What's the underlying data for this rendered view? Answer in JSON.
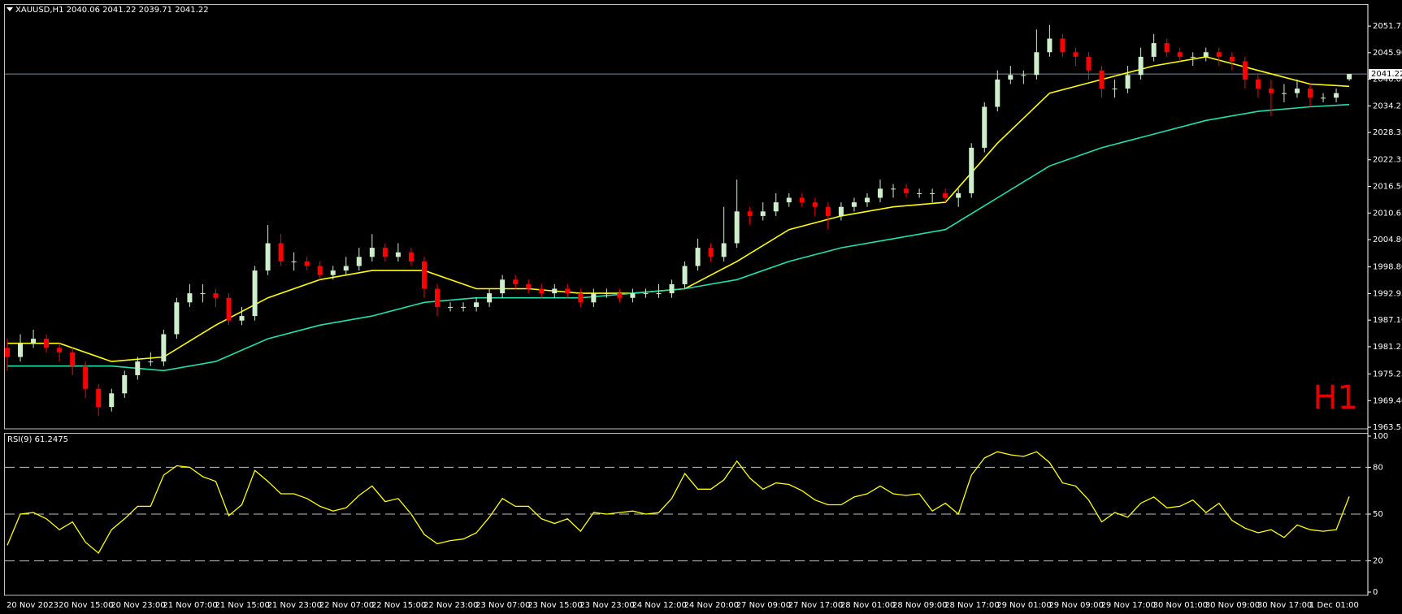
{
  "chart_data": [
    {
      "type": "candlestick",
      "title": "XAUUSD,H1  2040.06 2041.22 2039.71 2041.22",
      "watermark": "H1",
      "watermark_color": "#e00000",
      "up_color": "#cfeecb",
      "down_color": "#ff0000",
      "categories": [
        "20 Nov 2023",
        null,
        null,
        null,
        "20 Nov 15:00",
        null,
        null,
        null,
        "20 Nov 23:00",
        null,
        null,
        null,
        "21 Nov 07:00",
        null,
        null,
        null,
        "21 Nov 15:00",
        null,
        null,
        null,
        "21 Nov 23:00",
        null,
        null,
        null,
        "22 Nov 07:00",
        null,
        null,
        null,
        "22 Nov 15:00",
        null,
        null,
        null,
        "22 Nov 23:00",
        null,
        null,
        null,
        "23 Nov 07:00",
        null,
        null,
        null,
        "23 Nov 15:00",
        null,
        null,
        null,
        "23 Nov 23:00",
        null,
        null,
        null,
        "24 Nov 12:00",
        null,
        null,
        null,
        "24 Nov 20:00",
        null,
        null,
        null,
        "27 Nov 09:00",
        null,
        null,
        null,
        "27 Nov 17:00",
        null,
        null,
        null,
        "28 Nov 01:00",
        null,
        null,
        null,
        "28 Nov 09:00",
        null,
        null,
        null,
        "28 Nov 17:00",
        null,
        null,
        null,
        "29 Nov 01:00",
        null,
        null,
        null,
        "29 Nov 09:00",
        null,
        null,
        null,
        "29 Nov 17:00",
        null,
        null,
        null,
        "30 Nov 01:00",
        null,
        null,
        null,
        "30 Nov 09:00",
        null,
        null,
        null,
        "30 Nov 17:00",
        null,
        null,
        null,
        "1 Dec 01:00",
        null,
        null,
        null
      ],
      "open": [
        1981,
        1979,
        1982,
        1983,
        1981,
        1980,
        1977,
        1972,
        1968,
        1971,
        1975,
        1978,
        1978,
        1984,
        1991,
        1993,
        1993,
        1992,
        1987,
        1988,
        1998,
        2004,
        2000,
        2000,
        1999,
        1997,
        1998,
        1999,
        2001,
        2003,
        2001,
        2002,
        2000,
        1994,
        1990,
        1990,
        1990,
        1991,
        1993,
        1996,
        1995,
        1994,
        1993,
        1994,
        1993,
        1991,
        1993,
        1993,
        1992,
        1993,
        1993,
        1993,
        1995,
        1999,
        2003,
        2001,
        2004,
        2011,
        2010,
        2011,
        2013,
        2014,
        2013,
        2012,
        2010,
        2012,
        2013,
        2014,
        2016,
        2016,
        2015,
        2015,
        2015,
        2014,
        2015,
        2025,
        2034,
        2040,
        2041,
        2041,
        2046,
        2049,
        2046,
        2045,
        2042,
        2038,
        2038,
        2041,
        2045,
        2048,
        2046,
        2045,
        2045,
        2046,
        2045,
        2044,
        2040,
        2038,
        2037,
        2037,
        2038,
        2036,
        2036,
        2040.06
      ],
      "high": [
        1983,
        1984,
        1985,
        1984,
        1982,
        1981,
        1978,
        1973,
        1972,
        1976,
        1979,
        1980,
        1985,
        1992,
        1995,
        1995,
        1994,
        1993,
        1990,
        1999,
        2008,
        2006,
        2002,
        2001,
        2000,
        1999,
        2001,
        2003,
        2006,
        2004,
        2004,
        2003,
        2001,
        1995,
        1991,
        1991,
        1992,
        1994,
        1997,
        1997,
        1996,
        1995,
        1995,
        1995,
        1994,
        1994,
        1994,
        1994,
        1994,
        1994,
        1995,
        1996,
        2000,
        2005,
        2004,
        2012,
        2018,
        2012,
        2013,
        2015,
        2015,
        2015,
        2014,
        2013,
        2013,
        2014,
        2015,
        2018,
        2017,
        2017,
        2016,
        2016,
        2016,
        2016,
        2026,
        2035,
        2042,
        2043,
        2042,
        2051,
        2052,
        2050,
        2047,
        2046,
        2043,
        2040,
        2043,
        2047,
        2050,
        2049,
        2047,
        2046,
        2047,
        2047,
        2046,
        2045,
        2041,
        2040,
        2039,
        2040,
        2039,
        2037,
        2038,
        2041.22
      ],
      "low": [
        1976,
        1978,
        1981,
        1980,
        1978,
        1975,
        1970,
        1966,
        1967,
        1970,
        1974,
        1977,
        1977,
        1983,
        1990,
        1991,
        1990,
        1986,
        1986,
        1987,
        1997,
        1999,
        1998,
        1998,
        1996,
        1996,
        1997,
        1998,
        2000,
        2000,
        2000,
        1999,
        1992,
        1988,
        1989,
        1989,
        1989,
        1990,
        1992,
        1994,
        1993,
        1992,
        1992,
        1992,
        1990,
        1990,
        1992,
        1991,
        1991,
        1992,
        1992,
        1992,
        1994,
        1998,
        2000,
        2000,
        2003,
        2008,
        2009,
        2010,
        2012,
        2012,
        2010,
        2007,
        2009,
        2011,
        2012,
        2013,
        2014,
        2014,
        2014,
        2013,
        2013,
        2012,
        2014,
        2024,
        2033,
        2039,
        2039,
        2040,
        2045,
        2045,
        2043,
        2040,
        2036,
        2036,
        2037,
        2040,
        2044,
        2045,
        2044,
        2043,
        2044,
        2043,
        2042,
        2038,
        2036,
        2032,
        2035,
        2036,
        2034,
        2035,
        2035,
        2039.71
      ],
      "close": [
        1979,
        1982,
        1983,
        1981,
        1980,
        1977,
        1972,
        1968,
        1971,
        1975,
        1978,
        1978,
        1984,
        1991,
        1993,
        1993,
        1992,
        1987,
        1988,
        1998,
        2004,
        2000,
        2000,
        1999,
        1997,
        1998,
        1999,
        2001,
        2003,
        2001,
        2002,
        2000,
        1994,
        1990,
        1990,
        1990,
        1991,
        1993,
        1996,
        1995,
        1994,
        1993,
        1994,
        1993,
        1991,
        1993,
        1993,
        1992,
        1993,
        1993,
        1993,
        1995,
        1999,
        2003,
        2001,
        2004,
        2011,
        2010,
        2011,
        2013,
        2014,
        2013,
        2012,
        2010,
        2012,
        2013,
        2014,
        2016,
        2016,
        2015,
        2015,
        2015,
        2014,
        2015,
        2025,
        2034,
        2040,
        2041,
        2041,
        2046,
        2049,
        2046,
        2045,
        2042,
        2038,
        2038,
        2041,
        2045,
        2048,
        2046,
        2045,
        2045,
        2046,
        2045,
        2044,
        2040,
        2038,
        2037,
        2037,
        2038,
        2036,
        2036,
        2037,
        2041.22
      ],
      "overlays": [
        {
          "color": "#ffff00",
          "x": [
            0,
            4,
            8,
            12,
            16,
            20,
            24,
            28,
            32,
            36,
            40,
            44,
            48,
            52,
            56,
            60,
            64,
            68,
            72,
            76,
            80,
            84,
            88,
            92,
            96,
            100,
            103
          ],
          "values": [
            1982,
            1982,
            1978,
            1979,
            1986,
            1992,
            1996,
            1998,
            1998,
            1994,
            1994,
            1993,
            1993,
            1994,
            2000,
            2007,
            2010,
            2012,
            2013,
            2026,
            2037,
            2040,
            2043,
            2045,
            2042,
            2039,
            2038.5
          ]
        },
        {
          "color": "#20e0b0",
          "x": [
            0,
            4,
            8,
            12,
            16,
            20,
            24,
            28,
            32,
            36,
            40,
            44,
            48,
            52,
            56,
            60,
            64,
            68,
            72,
            76,
            80,
            84,
            88,
            92,
            96,
            100,
            103
          ],
          "values": [
            1977,
            1977,
            1977,
            1976,
            1978,
            1983,
            1986,
            1988,
            1991,
            1992,
            1992,
            1992,
            1993,
            1994,
            1996,
            2000,
            2003,
            2005,
            2007,
            2014,
            2021,
            2025,
            2028,
            2031,
            2033,
            2034,
            2034.5
          ]
        }
      ],
      "last_price": 2041.22,
      "last_price_color": "#7a8a9a",
      "ylim": [
        1963.2,
        2056.5
      ],
      "yticks": [
        2051.75,
        {
          "value": 2045.9,
          "label": "2045.90"
        },
        {
          "value": 2040.05,
          "label": "2040.05"
        },
        2034.2,
        {
          "value": 2028.35,
          "label": "2028.35"
        },
        {
          "value": 2022.35,
          "label": "2022.35"
        },
        {
          "value": 2016.5,
          "label": "2016.50"
        },
        2010.65,
        {
          "value": 2004.8,
          "label": "2004.80"
        },
        {
          "value": 1998.8,
          "label": "1998.80"
        },
        1992.95,
        {
          "value": 1987.1,
          "label": "1987.10"
        },
        1981.25,
        1975.25,
        {
          "value": 1969.4,
          "label": "1969.40"
        },
        1963.55
      ]
    },
    {
      "type": "line",
      "title": "RSI(9) 61.2475",
      "color": "#ffff00",
      "values": [
        30,
        50,
        51,
        47,
        40,
        45,
        32,
        25,
        40,
        47,
        55,
        55,
        75,
        81,
        80,
        74,
        71,
        49,
        56,
        78,
        71,
        63,
        63,
        60,
        55,
        52,
        54,
        62,
        68,
        58,
        60,
        50,
        37,
        31,
        33,
        34,
        38,
        48,
        60,
        55,
        55,
        47,
        44,
        47,
        39,
        51,
        50,
        51,
        52,
        50,
        51,
        60,
        76,
        66,
        66,
        72,
        84,
        73,
        66,
        70,
        69,
        65,
        59,
        56,
        56,
        61,
        63,
        68,
        63,
        62,
        63,
        52,
        57,
        50,
        75,
        86,
        90,
        88,
        87,
        90,
        83,
        70,
        68,
        59,
        45,
        51,
        48,
        57,
        61,
        54,
        55,
        59,
        51,
        57,
        46,
        41,
        38,
        40,
        35,
        43,
        40,
        39,
        40,
        61.2475
      ],
      "ylim": [
        0,
        100
      ],
      "yticks": [
        100,
        80,
        50,
        20,
        0
      ],
      "grid": "dashed"
    }
  ]
}
